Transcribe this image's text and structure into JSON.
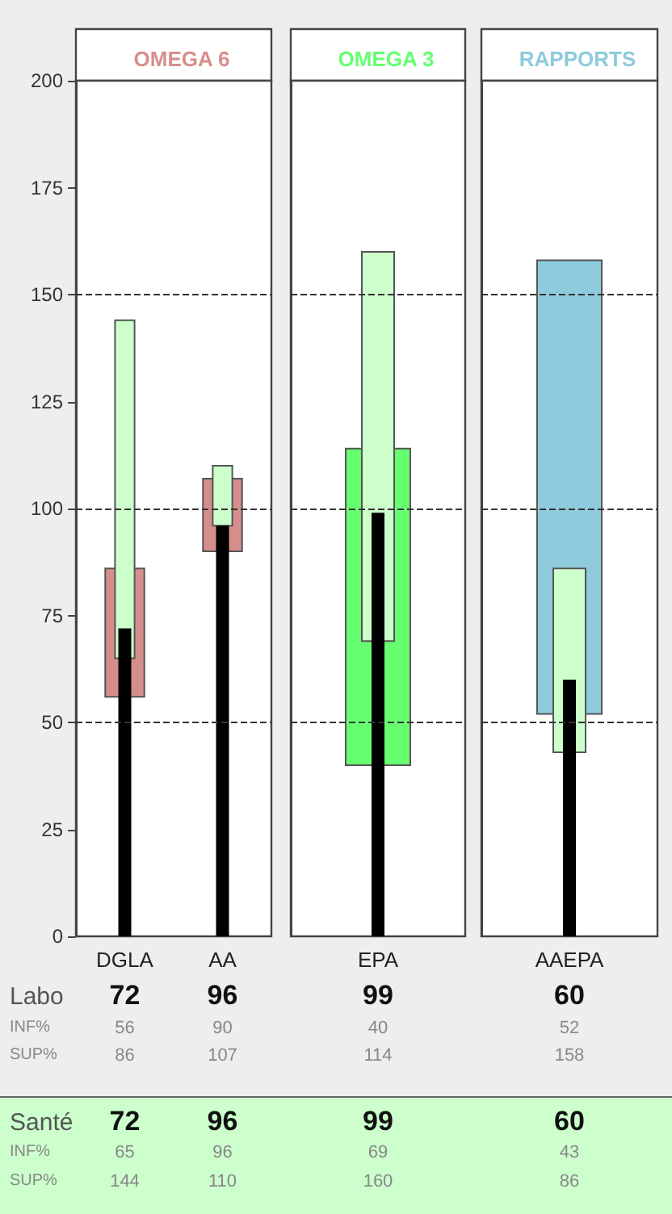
{
  "chart_data": [
    {
      "type": "bar",
      "title": "OMEGA 6",
      "categories": [
        "DGLA",
        "AA"
      ],
      "ylim": [
        0,
        200
      ],
      "yticks": [
        0,
        25,
        50,
        75,
        100,
        125,
        150,
        175,
        200
      ],
      "ref_lines": [
        {
          "axis": "y",
          "value": 50,
          "line_style": "dashed",
          "color": "#333333"
        },
        {
          "axis": "y",
          "value": 100,
          "line_style": "dashed",
          "color": "#333333"
        },
        {
          "axis": "y",
          "value": 150,
          "line_style": "dashed",
          "color": "#333333"
        }
      ],
      "annotations": [
        "Labo",
        "INF%",
        "SUP%",
        "Santé",
        "INF%",
        "SUP%",
        "56",
        "86",
        "65",
        "144",
        "90",
        "107",
        "96",
        "110"
      ],
      "series": [
        {
          "base": [
            56,
            90
          ],
          "values": [
            30,
            17
          ],
          "color": "#d68e8c"
        },
        {
          "base": [
            65,
            96
          ],
          "values": [
            79,
            14
          ],
          "color": "#ccffcc"
        },
        {
          "color": "#000000",
          "values": [
            72,
            96
          ],
          "value_labels": [
            "72",
            "96"
          ]
        }
      ]
    },
    {
      "type": "bar",
      "title": "OMEGA 3",
      "categories": [
        "EPA"
      ],
      "ylim": [
        0,
        200
      ],
      "yticks": [
        0,
        25,
        50,
        75,
        100,
        125,
        150,
        175,
        200
      ],
      "tick_labels": "x",
      "ref_lines": [
        {
          "axis": "y",
          "value": 50,
          "line_style": "dashed",
          "color": "#333333"
        },
        {
          "axis": "y",
          "value": 100,
          "line_style": "dashed",
          "color": "#333333"
        },
        {
          "axis": "y",
          "value": 150,
          "line_style": "dashed",
          "color": "#333333"
        }
      ],
      "annotations": [
        "40",
        "114",
        "69",
        "160"
      ],
      "series": [
        {
          "base": [
            40
          ],
          "values": [
            74
          ],
          "color": "#66ff70"
        },
        {
          "base": [
            69
          ],
          "values": [
            91
          ],
          "color": "#ccffcc"
        },
        {
          "color": "#000000",
          "values": [
            99
          ],
          "value_labels": [
            "99"
          ]
        }
      ]
    },
    {
      "type": "bar",
      "title": "RAPPORTS",
      "categories": [
        "AAEPA"
      ],
      "ylim": [
        0,
        200
      ],
      "yticks": [
        0,
        25,
        50,
        75,
        100,
        125,
        150,
        175,
        200
      ],
      "tick_labels": "x",
      "ref_lines": [
        {
          "axis": "y",
          "value": 50,
          "line_style": "dashed",
          "color": "#333333"
        },
        {
          "axis": "y",
          "value": 100,
          "line_style": "dashed",
          "color": "#333333"
        },
        {
          "axis": "y",
          "value": 150,
          "line_style": "dashed",
          "color": "#333333"
        }
      ],
      "annotations": [
        "52",
        "158",
        "43",
        "86"
      ],
      "series": [
        {
          "base": [
            52
          ],
          "values": [
            106
          ],
          "color": "#8ecbdc"
        },
        {
          "base": [
            43
          ],
          "values": [
            43
          ],
          "color": "#ccffcc"
        },
        {
          "color": "#000000",
          "values": [
            60
          ],
          "value_labels": [
            "60"
          ]
        }
      ]
    }
  ]
}
